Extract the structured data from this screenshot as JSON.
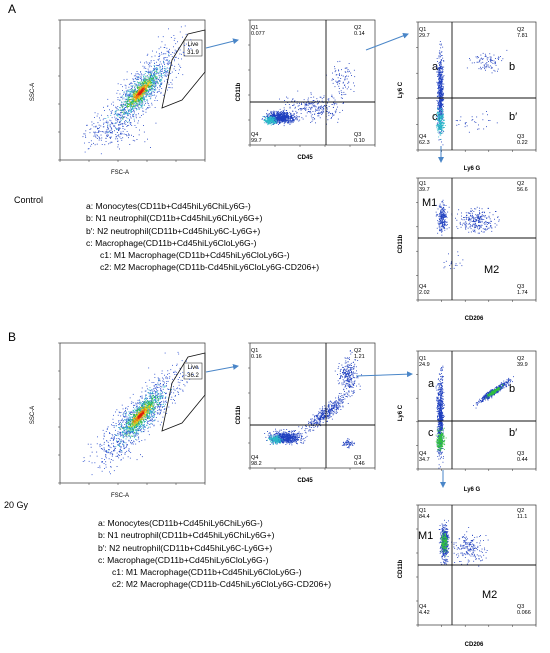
{
  "panels": [
    {
      "letter": "A",
      "condition": "Control",
      "gate_plot": {
        "x_label": "FSC-A",
        "y_label": "SSC-A",
        "gate_name": "Live",
        "gate_pct": "31.9"
      },
      "cd45_plot": {
        "x_label": "CD45",
        "y_label": "CD11b",
        "q": [
          {
            "name": "Q1",
            "value": "0.077"
          },
          {
            "name": "Q2",
            "value": "0.14"
          },
          {
            "name": "Q3",
            "value": "0.10"
          },
          {
            "name": "Q4",
            "value": "99.7"
          }
        ]
      },
      "ly6_plot": {
        "x_label": "Ly6 G",
        "y_label": "Ly6 C",
        "q": [
          {
            "name": "Q1",
            "value": "29.7"
          },
          {
            "name": "Q2",
            "value": "7.81"
          },
          {
            "name": "Q3",
            "value": "0.22"
          },
          {
            "name": "Q4",
            "value": "62.3"
          }
        ],
        "pops": [
          "a",
          "b",
          "c",
          "b′"
        ]
      },
      "cd206_plot": {
        "x_label": "CD206",
        "y_label": "CD11b",
        "q": [
          {
            "name": "Q1",
            "value": "39.7"
          },
          {
            "name": "Q2",
            "value": "56.6"
          },
          {
            "name": "Q3",
            "value": "1.74"
          },
          {
            "name": "Q4",
            "value": "2.02"
          }
        ],
        "pops": [
          "M1",
          "M2"
        ]
      },
      "legend": [
        "a: Monocytes(CD11b+Cd45hiLy6ChiLy6G-)",
        "b: N1 neutrophil(CD11b+Cd45hiLy6ChiLy6G+)",
        "b′: N2 neutrophil(CD11b+Cd45hiLy6C-Ly6G+)",
        "c:  Macrophage(CD11b+Cd45hiLy6CloLy6G-)",
        "c1: M1 Macrophage(CD11b+Cd45hiLy6CloLy6G-)",
        "c2: M2 Macrophage(CD11b-Cd45hiLy6CloLy6G-CD206+)"
      ]
    },
    {
      "letter": "B",
      "condition": "20 Gy",
      "gate_plot": {
        "x_label": "FSC-A",
        "y_label": "SSC-A",
        "gate_name": "Live",
        "gate_pct": "36.2"
      },
      "cd45_plot": {
        "x_label": "CD45",
        "y_label": "CD11b",
        "q": [
          {
            "name": "Q1",
            "value": "0.16"
          },
          {
            "name": "Q2",
            "value": "1.21"
          },
          {
            "name": "Q3",
            "value": "0.46"
          },
          {
            "name": "Q4",
            "value": "98.2"
          }
        ]
      },
      "ly6_plot": {
        "x_label": "Ly6 G",
        "y_label": "Ly6 C",
        "q": [
          {
            "name": "Q1",
            "value": "24.9"
          },
          {
            "name": "Q2",
            "value": "39.9"
          },
          {
            "name": "Q3",
            "value": "0.44"
          },
          {
            "name": "Q4",
            "value": "34.7"
          }
        ],
        "pops": [
          "a",
          "b",
          "c",
          "b′"
        ]
      },
      "cd206_plot": {
        "x_label": "CD206",
        "y_label": "CD11b",
        "q": [
          {
            "name": "Q1",
            "value": "84.4"
          },
          {
            "name": "Q2",
            "value": "11.1"
          },
          {
            "name": "Q3",
            "value": "0.066"
          },
          {
            "name": "Q4",
            "value": "4.42"
          }
        ],
        "pops": [
          "M1",
          "M2"
        ]
      },
      "legend": [
        "a: Monocytes(CD11b+Cd45hiLy6ChiLy6G-)",
        "b: N1 neutrophil(CD11b+Cd45hiLy6ChiLy6G+)",
        "b′: N2 neutrophil(CD11b+Cd45hiLy6C-Ly6G+)",
        "c:  Macrophage(CD11b+Cd45hiLy6CloLy6G-)",
        "c1: M1 Macrophage(CD11b+Cd45hiLy6CloLy6G-)",
        "c2: M2 Macrophage(CD11b-Cd45hiLy6CloLy6G-CD206+)"
      ]
    }
  ],
  "colors": {
    "arrow": "#4a86c8",
    "dots": "#1f3fbf",
    "gate": "#111111"
  }
}
